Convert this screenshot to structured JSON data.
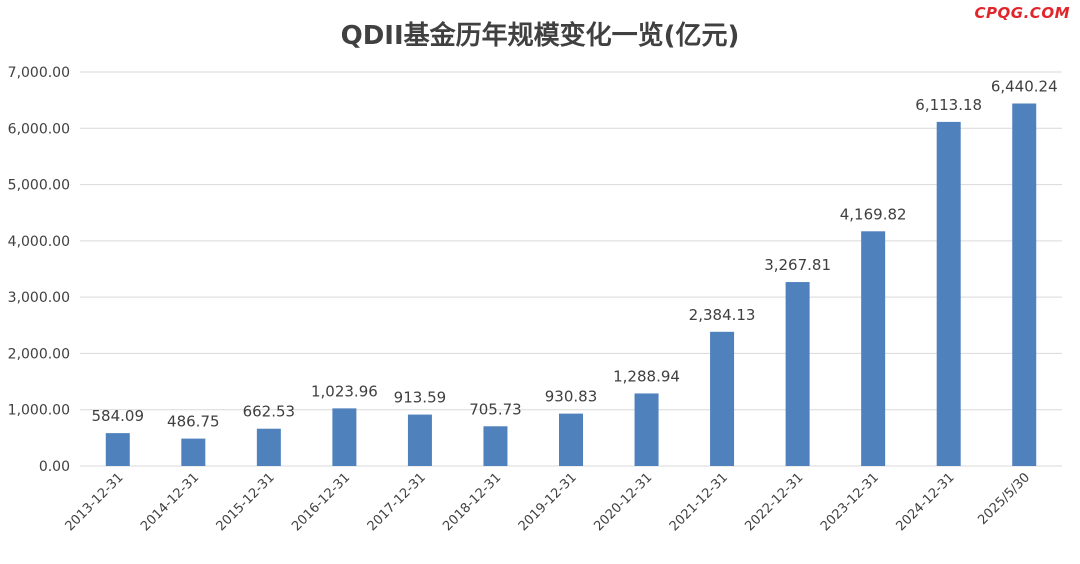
{
  "watermark": "CPQG.COM",
  "colors": {
    "bar": "#4f81bd",
    "grid": "#d9d9d9",
    "text": "#404040",
    "title": "#404040"
  },
  "chart_data": {
    "type": "bar",
    "title": "QDII基金历年规模变化一览(亿元)",
    "xlabel": "",
    "ylabel": "",
    "categories": [
      "2013-12-31",
      "2014-12-31",
      "2015-12-31",
      "2016-12-31",
      "2017-12-31",
      "2018-12-31",
      "2019-12-31",
      "2020-12-31",
      "2021-12-31",
      "2022-12-31",
      "2023-12-31",
      "2024-12-31",
      "2025/5/30"
    ],
    "values": [
      584.09,
      486.75,
      662.53,
      1023.96,
      913.59,
      705.73,
      930.83,
      1288.94,
      2384.13,
      3267.81,
      4169.82,
      6113.18,
      6440.24
    ],
    "value_labels": [
      "584.09",
      "486.75",
      "662.53",
      "1,023.96",
      "913.59",
      "705.73",
      "930.83",
      "1,288.94",
      "2,384.13",
      "3,267.81",
      "4,169.82",
      "6,113.18",
      "6,440.24"
    ],
    "ylim": [
      0,
      7000
    ],
    "yticks": [
      0,
      1000,
      2000,
      3000,
      4000,
      5000,
      6000,
      7000
    ],
    "ytick_labels": [
      "0.00",
      "1,000.00",
      "2,000.00",
      "3,000.00",
      "4,000.00",
      "5,000.00",
      "6,000.00",
      "7,000.00"
    ],
    "grid": true,
    "legend": "none"
  }
}
